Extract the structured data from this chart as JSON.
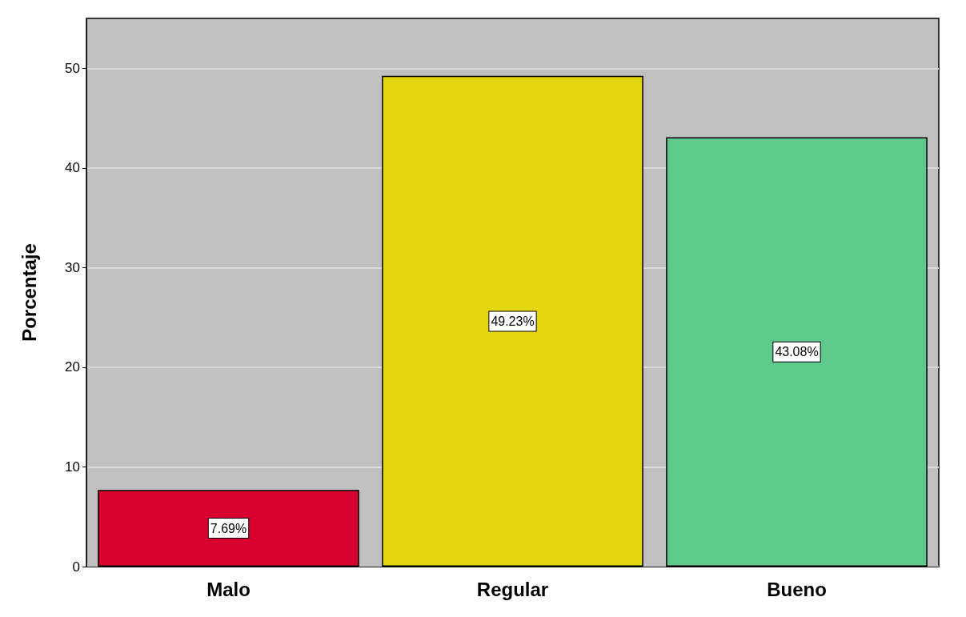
{
  "chart_data": {
    "type": "bar",
    "ylabel": "Porcentaje",
    "categories": [
      "Malo",
      "Regular",
      "Bueno"
    ],
    "values": [
      7.69,
      49.23,
      43.08
    ],
    "colors": [
      "#d7002f",
      "#e2d511",
      "#5ec98b"
    ],
    "value_labels": [
      "7.69%",
      "49.23%",
      "43.08%"
    ],
    "ylim": [
      0,
      55
    ],
    "yticks": [
      0,
      10,
      20,
      30,
      40,
      50
    ],
    "grid": true
  }
}
